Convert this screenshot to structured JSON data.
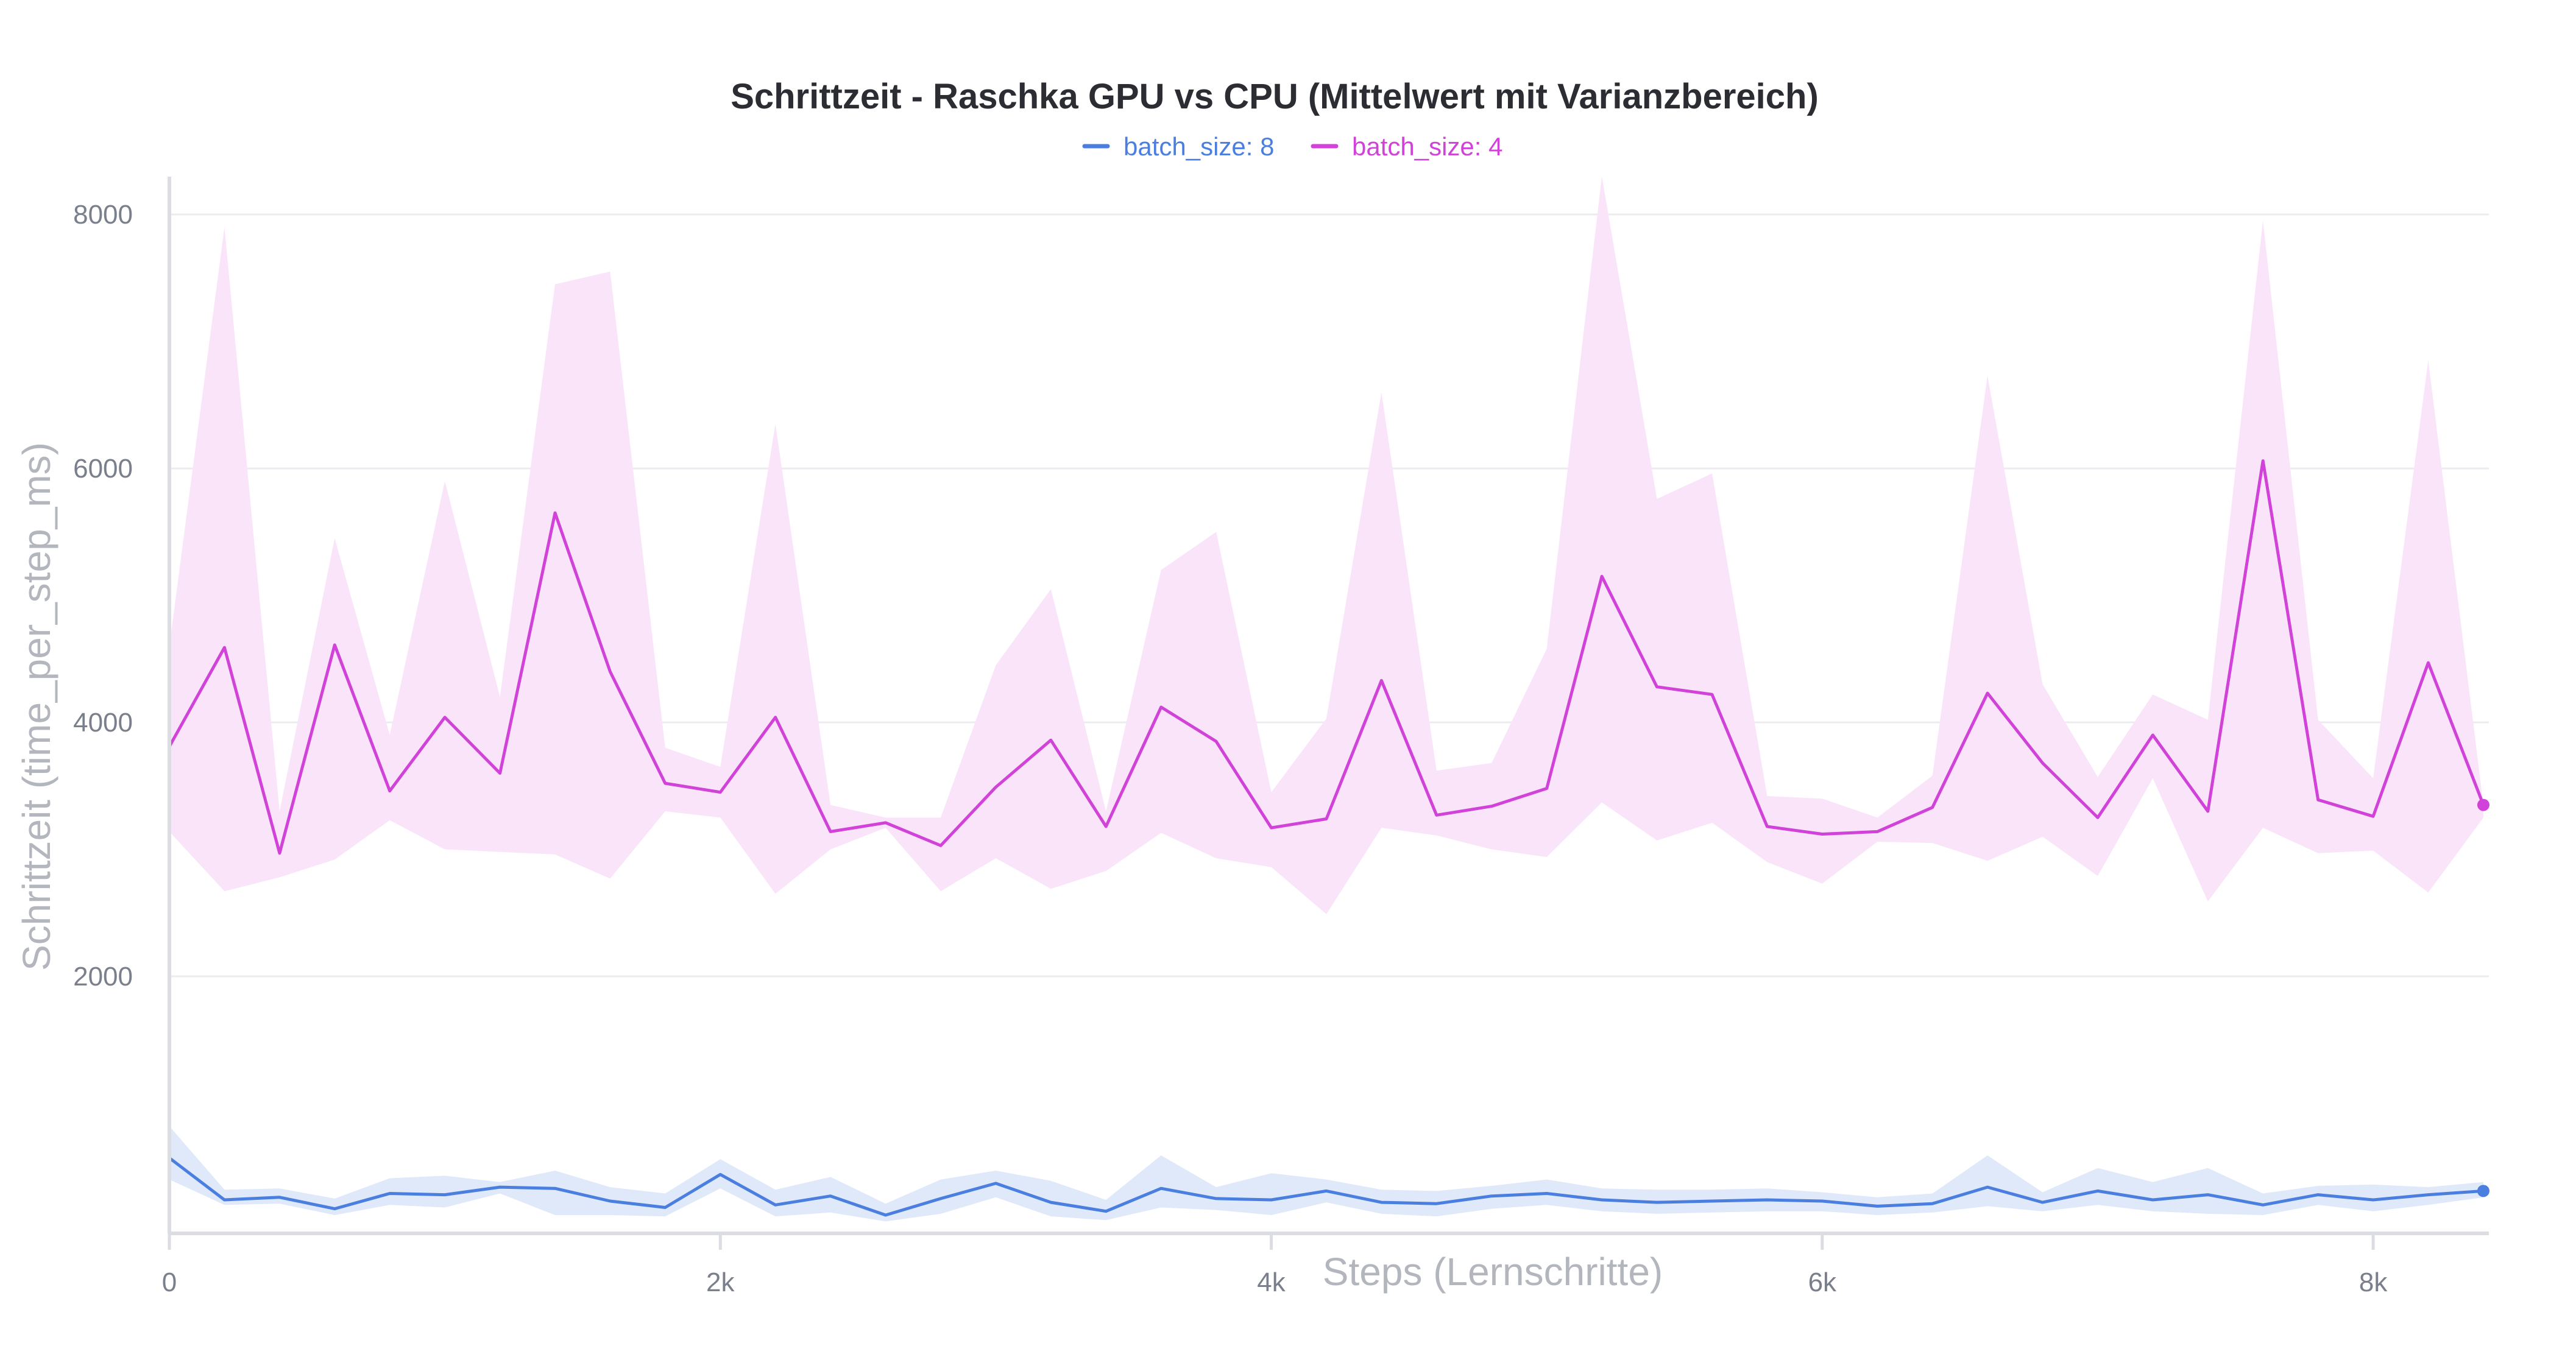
{
  "chart_data": {
    "type": "line",
    "title": "Schrittzeit - Raschka GPU vs CPU (Mittelwert mit Varianzbereich)",
    "xlabel": "Steps (Lernschritte)",
    "ylabel": "Schrittzeit (time_per_step_ms)",
    "xlim": [
      0,
      8420
    ],
    "ylim": [
      0,
      8250
    ],
    "x_ticks": [
      0,
      2000,
      4000,
      6000,
      8000
    ],
    "x_tick_labels": [
      "0",
      "2k",
      "4k",
      "6k",
      "8k"
    ],
    "y_ticks": [
      2000,
      4000,
      6000,
      8000
    ],
    "y_tick_labels": [
      "2000",
      "4000",
      "6000",
      "8000"
    ],
    "grid": true,
    "legend_position": "top-center",
    "x": [
      0,
      200,
      400,
      600,
      800,
      1000,
      1200,
      1400,
      1600,
      1800,
      2000,
      2200,
      2400,
      2600,
      2800,
      3000,
      3200,
      3400,
      3600,
      3800,
      4000,
      4200,
      4400,
      4600,
      4800,
      5000,
      5200,
      5400,
      5600,
      5800,
      6000,
      6200,
      6400,
      6600,
      6800,
      7000,
      7200,
      7400,
      7600,
      7800,
      8000,
      8200,
      8400
    ],
    "series": [
      {
        "name": "batch_size: 8",
        "color": "#4a7fe0",
        "band_color": "#dfe9fa",
        "mean": [
          570,
          240,
          260,
          170,
          290,
          280,
          340,
          330,
          230,
          180,
          440,
          200,
          270,
          120,
          250,
          370,
          220,
          150,
          330,
          250,
          240,
          310,
          220,
          210,
          270,
          290,
          240,
          220,
          230,
          240,
          230,
          190,
          210,
          340,
          220,
          310,
          240,
          280,
          200,
          280,
          240,
          280,
          310
        ],
        "band_upper": [
          820,
          320,
          330,
          250,
          410,
          430,
          380,
          470,
          340,
          290,
          560,
          320,
          420,
          210,
          400,
          470,
          390,
          240,
          590,
          340,
          450,
          400,
          320,
          310,
          350,
          400,
          330,
          320,
          320,
          330,
          300,
          260,
          290,
          590,
          300,
          490,
          380,
          490,
          290,
          350,
          360,
          340,
          380
        ],
        "band_lower": [
          400,
          200,
          210,
          120,
          200,
          180,
          290,
          120,
          120,
          110,
          330,
          110,
          140,
          70,
          130,
          260,
          110,
          80,
          180,
          160,
          120,
          220,
          130,
          110,
          170,
          200,
          150,
          130,
          140,
          150,
          150,
          120,
          140,
          190,
          150,
          200,
          150,
          130,
          120,
          200,
          150,
          200,
          260
        ]
      },
      {
        "name": "batch_size: 4",
        "color": "#d142d8",
        "band_color": "#f9e4fa",
        "mean": [
          3810,
          4590,
          2970,
          4610,
          3460,
          4040,
          3600,
          5650,
          4400,
          3520,
          3450,
          4040,
          3140,
          3210,
          3030,
          3490,
          3860,
          3180,
          4120,
          3850,
          3170,
          3240,
          4330,
          3270,
          3340,
          3480,
          5150,
          4280,
          4220,
          3180,
          3120,
          3140,
          3330,
          4230,
          3680,
          3250,
          3900,
          3300,
          6060,
          3390,
          3260,
          4470,
          3350
        ],
        "band_upper": [
          4600,
          7900,
          3300,
          5450,
          3900,
          5900,
          4200,
          7450,
          7550,
          3800,
          3650,
          6350,
          3350,
          3250,
          3250,
          4450,
          5050,
          3300,
          5200,
          5500,
          3450,
          4030,
          6600,
          3620,
          3680,
          4580,
          8300,
          5760,
          5960,
          3420,
          3400,
          3250,
          3580,
          6730,
          4300,
          3570,
          4220,
          4020,
          7950,
          4020,
          3560,
          6850,
          3350
        ],
        "band_lower": [
          3140,
          2670,
          2780,
          2920,
          3230,
          3000,
          2980,
          2960,
          2770,
          3300,
          3250,
          2650,
          3000,
          3170,
          2670,
          2930,
          2690,
          2830,
          3130,
          2930,
          2860,
          2490,
          3170,
          3110,
          3000,
          2940,
          3370,
          3070,
          3210,
          2900,
          2730,
          3060,
          3050,
          2910,
          3100,
          2790,
          3560,
          2590,
          3170,
          2970,
          2990,
          2660,
          3250
        ]
      }
    ]
  }
}
